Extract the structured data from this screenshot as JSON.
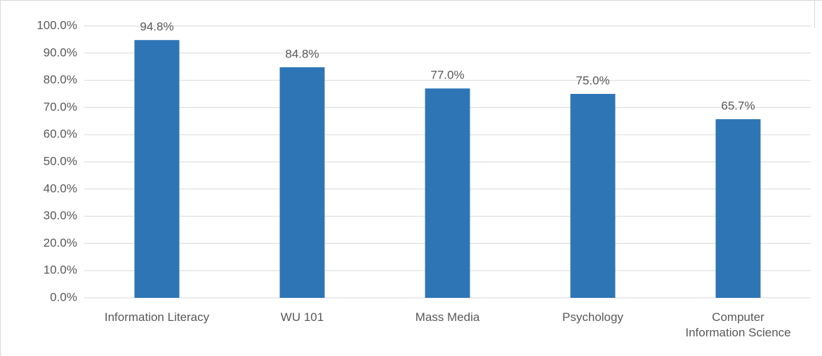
{
  "chart_data": {
    "type": "bar",
    "categories": [
      "Information Literacy",
      "WU 101",
      "Mass Media",
      "Psychology",
      "Computer Information Science"
    ],
    "values": [
      94.8,
      84.8,
      77.0,
      75.0,
      65.7
    ],
    "value_labels": [
      "94.8%",
      "84.8%",
      "77.0%",
      "75.0%",
      "65.7%"
    ],
    "color": "#2e75b6",
    "ylim": [
      0,
      100
    ],
    "yticks": [
      {
        "value": 0,
        "label": "0.0%"
      },
      {
        "value": 10,
        "label": "10.0%"
      },
      {
        "value": 20,
        "label": "20.0%"
      },
      {
        "value": 30,
        "label": "30.0%"
      },
      {
        "value": 40,
        "label": "40.0%"
      },
      {
        "value": 50,
        "label": "50.0%"
      },
      {
        "value": 60,
        "label": "60.0%"
      },
      {
        "value": 70,
        "label": "70.0%"
      },
      {
        "value": 80,
        "label": "80.0%"
      },
      {
        "value": 90,
        "label": "90.0%"
      },
      {
        "value": 100,
        "label": "100.0%"
      }
    ],
    "grid": true
  }
}
